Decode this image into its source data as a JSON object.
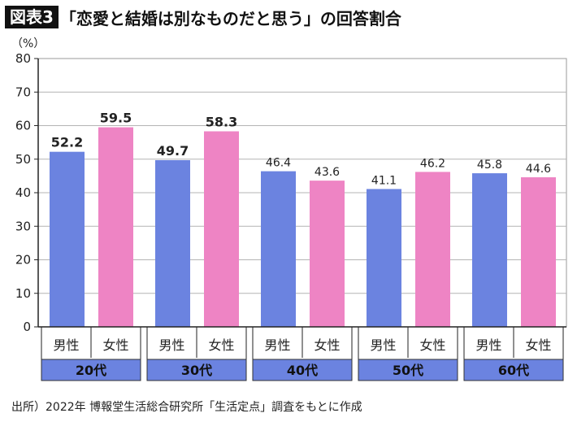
{
  "header": {
    "figure_tag": "図表3",
    "title": "「恋愛と結婚は別なものだと思う」の回答割合"
  },
  "source": "出所）2022年 博報堂生活総合研究所「生活定点」調査をもとに作成",
  "colors": {
    "male": "#6b83e0",
    "female": "#ee84c4",
    "group_band": "#6b83e0",
    "grid": "#b4b4b4",
    "axis": "#222222"
  },
  "chart_data": {
    "type": "bar",
    "unit_label": "（%）",
    "ylim": [
      0,
      80
    ],
    "yticks": [
      0,
      10,
      20,
      30,
      40,
      50,
      60,
      70,
      80
    ],
    "grid": true,
    "groups": [
      "20代",
      "30代",
      "40代",
      "50代",
      "60代"
    ],
    "series": [
      {
        "name": "男性",
        "values": [
          52.2,
          49.7,
          46.4,
          41.1,
          45.8
        ]
      },
      {
        "name": "女性",
        "values": [
          59.5,
          58.3,
          43.6,
          46.2,
          44.6
        ]
      }
    ],
    "bold_labels_groups": [
      0,
      1
    ]
  }
}
